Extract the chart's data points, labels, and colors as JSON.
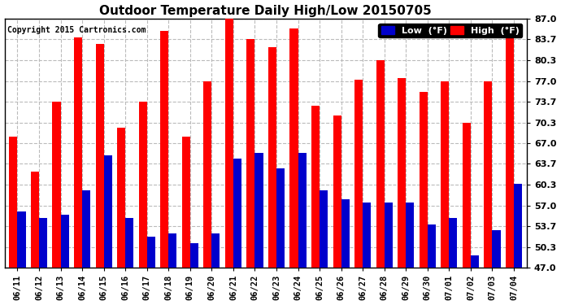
{
  "title": "Outdoor Temperature Daily High/Low 20150705",
  "copyright": "Copyright 2015 Cartronics.com",
  "labels": [
    "06/11",
    "06/12",
    "06/13",
    "06/14",
    "06/15",
    "06/16",
    "06/17",
    "06/18",
    "06/19",
    "06/20",
    "06/21",
    "06/22",
    "06/23",
    "06/24",
    "06/25",
    "06/26",
    "06/27",
    "06/28",
    "06/29",
    "06/30",
    "07/01",
    "07/02",
    "07/03",
    "07/04"
  ],
  "highs": [
    68.0,
    62.5,
    73.7,
    84.0,
    83.0,
    69.5,
    73.7,
    85.0,
    68.0,
    77.0,
    87.0,
    83.7,
    82.5,
    85.5,
    73.0,
    71.5,
    77.2,
    80.3,
    77.5,
    75.2,
    77.0,
    70.3,
    77.0,
    85.0
  ],
  "lows": [
    56.0,
    55.0,
    55.5,
    59.5,
    65.0,
    55.0,
    52.0,
    52.5,
    51.0,
    52.5,
    64.5,
    65.5,
    63.0,
    65.5,
    59.5,
    58.0,
    57.5,
    57.5,
    57.5,
    54.0,
    55.0,
    49.0,
    53.0,
    60.5
  ],
  "high_color": "#ff0000",
  "low_color": "#0000cc",
  "bg_color": "#ffffff",
  "grid_color": "#bbbbbb",
  "ymin": 47.0,
  "ymax": 87.0,
  "yticks": [
    47.0,
    50.3,
    53.7,
    57.0,
    60.3,
    63.7,
    67.0,
    70.3,
    73.7,
    77.0,
    80.3,
    83.7,
    87.0
  ],
  "legend_low_label": "Low  (°F)",
  "legend_high_label": "High  (°F)"
}
